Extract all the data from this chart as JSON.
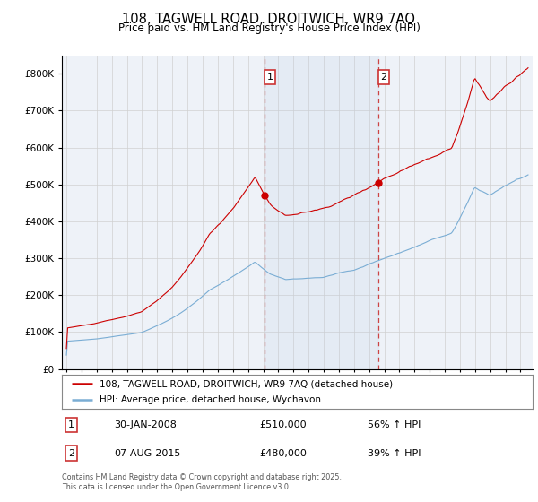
{
  "title": "108, TAGWELL ROAD, DROITWICH, WR9 7AQ",
  "subtitle": "Price paid vs. HM Land Registry's House Price Index (HPI)",
  "background_color": "#ffffff",
  "plot_bg_color": "#eef2f8",
  "grid_color": "#cccccc",
  "red_color": "#cc0000",
  "blue_color": "#7aadd4",
  "sale1_date_num": 2008.08,
  "sale2_date_num": 2015.6,
  "sale1_price": 510000,
  "sale2_price": 480000,
  "legend_line1": "108, TAGWELL ROAD, DROITWICH, WR9 7AQ (detached house)",
  "legend_line2": "HPI: Average price, detached house, Wychavon",
  "footer": "Contains HM Land Registry data © Crown copyright and database right 2025.\nThis data is licensed under the Open Government Licence v3.0.",
  "ylim_max": 850000,
  "ylim_min": 0,
  "xlim_min": 1994.7,
  "xlim_max": 2025.8
}
